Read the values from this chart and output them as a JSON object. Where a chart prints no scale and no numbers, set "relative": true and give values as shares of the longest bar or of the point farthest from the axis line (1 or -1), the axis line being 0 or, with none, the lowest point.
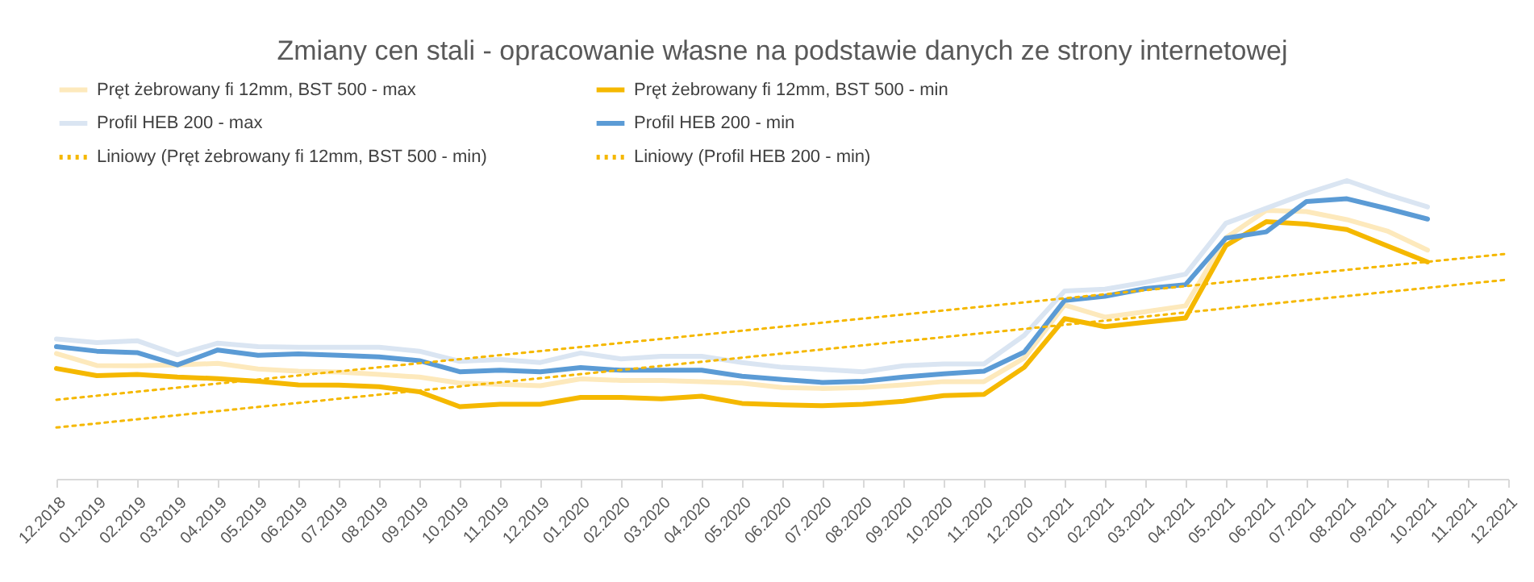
{
  "chart_data": {
    "type": "line",
    "title": "Zmiany cen stali - opracowanie własne na podstawie danych ze strony internetowej",
    "relative": true,
    "legend": "top",
    "grid": false,
    "marker": "none",
    "categories": [
      "12.2018",
      "01.2019",
      "02.2019",
      "03.2019",
      "04.2019",
      "05.2019",
      "06.2019",
      "07.2019",
      "08.2019",
      "09.2019",
      "10.2019",
      "11.2019",
      "12.2019",
      "01.2020",
      "02.2020",
      "03.2020",
      "04.2020",
      "05.2020",
      "06.2020",
      "07.2020",
      "08.2020",
      "09.2020",
      "10.2020",
      "11.2020",
      "12.2020",
      "01.2021",
      "02.2021",
      "03.2021",
      "04.2021",
      "05.2021",
      "06.2021",
      "07.2021",
      "08.2021",
      "09.2021",
      "10.2021",
      "11.2021",
      "12.2021"
    ],
    "series": [
      {
        "name": "Pręt żebrowany fi 12mm, BST 500 - max",
        "color": "#fde9bc",
        "line_style": "solid",
        "values": [
          0.42,
          0.38,
          0.379,
          0.382,
          0.387,
          0.368,
          0.361,
          0.358,
          0.35,
          0.341,
          0.321,
          0.317,
          0.312,
          0.335,
          0.33,
          0.33,
          0.326,
          0.321,
          0.306,
          0.303,
          0.306,
          0.315,
          0.326,
          0.326,
          0.405,
          0.583,
          0.542,
          0.56,
          0.58,
          0.808,
          0.9,
          0.896,
          0.869,
          0.831,
          0.767,
          null,
          null
        ]
      },
      {
        "name": "Pręt żebrowany fi 12mm, BST 500 - min",
        "color": "#f5b800",
        "line_style": "solid",
        "values": [
          0.37,
          0.346,
          0.35,
          0.341,
          0.336,
          0.327,
          0.315,
          0.314,
          0.309,
          0.292,
          0.242,
          0.25,
          0.25,
          0.273,
          0.273,
          0.268,
          0.277,
          0.253,
          0.248,
          0.245,
          0.25,
          0.26,
          0.279,
          0.283,
          0.374,
          0.537,
          0.51,
          0.525,
          0.539,
          0.782,
          0.862,
          0.854,
          0.836,
          0.781,
          0.727,
          null,
          null
        ]
      },
      {
        "name": "Profil HEB 200 - max",
        "color": "#dae5f2",
        "line_style": "solid",
        "values": [
          0.469,
          0.457,
          0.463,
          0.416,
          0.455,
          0.443,
          0.441,
          0.441,
          0.441,
          0.428,
          0.394,
          0.4,
          0.39,
          0.422,
          0.402,
          0.411,
          0.411,
          0.39,
          0.374,
          0.367,
          0.359,
          0.379,
          0.385,
          0.385,
          0.481,
          0.63,
          0.636,
          0.659,
          0.686,
          0.857,
          0.907,
          0.957,
          1,
          0.953,
          0.912,
          null,
          null
        ]
      },
      {
        "name": "Profil HEB 200 - min",
        "color": "#5b9bd5",
        "line_style": "solid",
        "values": [
          0.443,
          0.428,
          0.423,
          0.382,
          0.432,
          0.414,
          0.419,
          0.414,
          0.409,
          0.396,
          0.359,
          0.364,
          0.359,
          0.373,
          0.364,
          0.364,
          0.364,
          0.344,
          0.333,
          0.323,
          0.327,
          0.341,
          0.352,
          0.361,
          0.425,
          0.598,
          0.612,
          0.638,
          0.651,
          0.807,
          0.828,
          0.93,
          0.939,
          0.906,
          0.871,
          null,
          null
        ]
      },
      {
        "name": "Liniowy (Pręt żebrowany fi 12mm, BST 500 - min)",
        "color": "#f5b800",
        "type": "line",
        "line_style": "dotted",
        "x": [
          "12.2018",
          "12.2021"
        ],
        "values": [
          0.172,
          0.668
        ]
      },
      {
        "name": "Liniowy (Profil HEB 200 - min)",
        "color": "#f5b800",
        "type": "line",
        "line_style": "dotted",
        "x": [
          "12.2018",
          "12.2021"
        ],
        "values": [
          0.265,
          0.755
        ]
      }
    ]
  }
}
